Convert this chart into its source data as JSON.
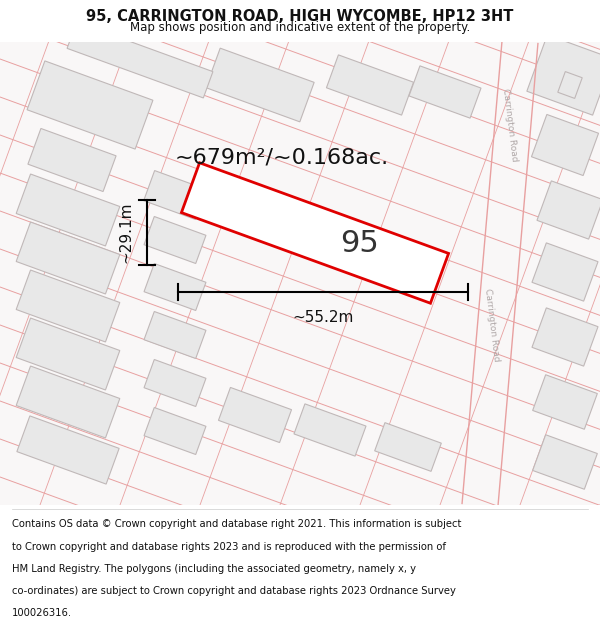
{
  "title": "95, CARRINGTON ROAD, HIGH WYCOMBE, HP12 3HT",
  "subtitle": "Map shows position and indicative extent of the property.",
  "footer": "Contains OS data © Crown copyright and database right 2021. This information is subject to Crown copyright and database rights 2023 and is reproduced with the permission of HM Land Registry. The polygons (including the associated geometry, namely x, y co-ordinates) are subject to Crown copyright and database rights 2023 Ordnance Survey 100026316.",
  "area_label": "~679m²/~0.168ac.",
  "width_label": "~55.2m",
  "height_label": "~29.1m",
  "property_number": "95",
  "map_bg": "#f9f7f7",
  "road_line_color": "#e8a0a0",
  "building_fill": "#e8e8e8",
  "building_outline": "#c0b8b8",
  "highlight_color": "#e00000",
  "text_color": "#111111",
  "road_label_color": "#b0a8a8",
  "title_fontsize": 10.5,
  "subtitle_fontsize": 8.5,
  "footer_fontsize": 7.2,
  "area_fontsize": 16,
  "number_fontsize": 22,
  "dim_fontsize": 11,
  "road_label": "Carrington Road"
}
